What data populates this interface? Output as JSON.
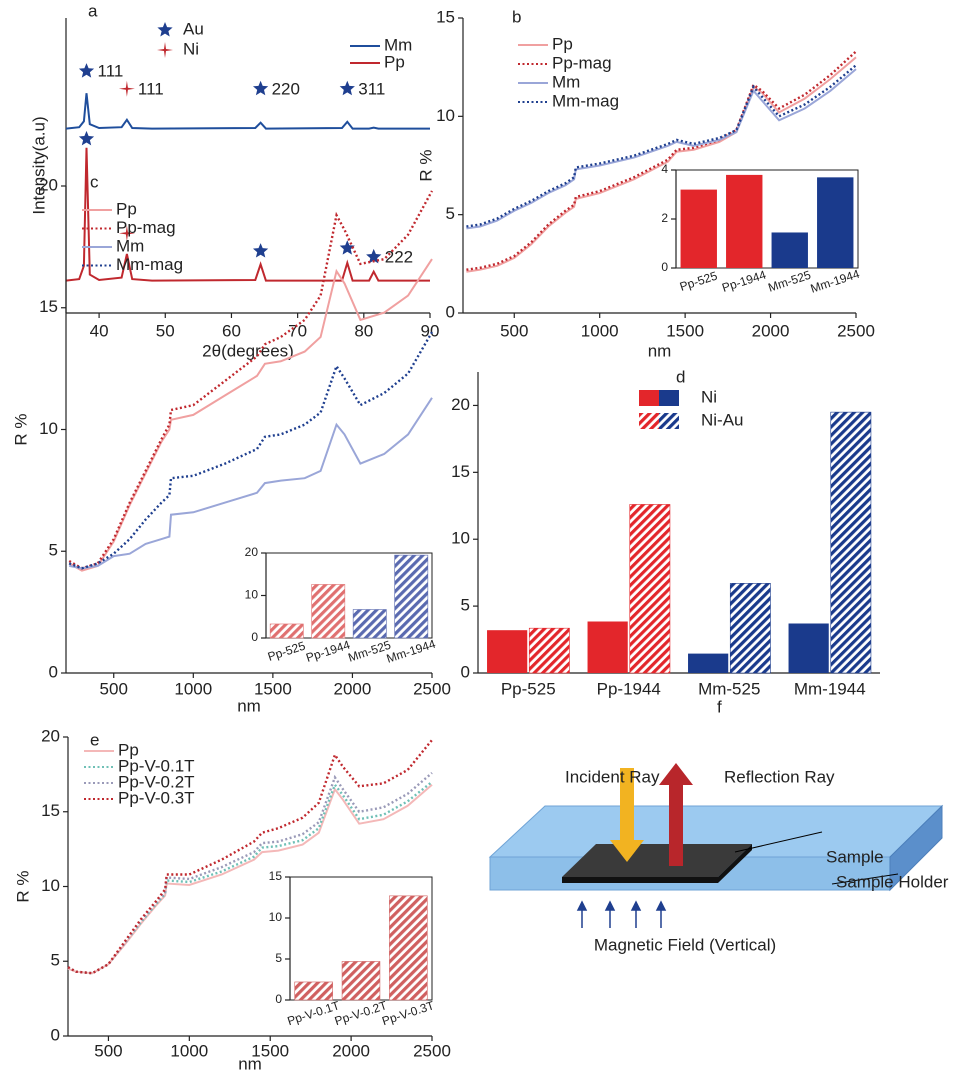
{
  "chart_data": [
    {
      "type": "line",
      "panel": "a",
      "xlabel": "2θ(degrees)",
      "ylabel": "Intensity(a.u)",
      "x": [
        35,
        37,
        37.7,
        38.1,
        38.6,
        40,
        43.4,
        44.2,
        45,
        48,
        63.6,
        64.4,
        65.2,
        76.7,
        77.5,
        78.3,
        80.8,
        81.5,
        82.2,
        90
      ],
      "xlim": [
        35,
        90
      ],
      "xticks": [
        40,
        50,
        60,
        70,
        80,
        90
      ],
      "ylim": [
        0,
        10
      ],
      "legend": "upper right",
      "series": [
        {
          "name": "Mm",
          "color": "#1f4e9c",
          "values": [
            6.25,
            6.3,
            6.5,
            7.45,
            6.4,
            6.27,
            6.3,
            6.55,
            6.27,
            6.25,
            6.27,
            6.45,
            6.25,
            6.27,
            6.48,
            6.25,
            6.25,
            6.28,
            6.25,
            6.25
          ]
        },
        {
          "name": "Pp",
          "color": "#c0282e",
          "values": [
            1.1,
            1.15,
            1.6,
            5.6,
            1.3,
            1.12,
            1.2,
            2.0,
            1.15,
            1.1,
            1.12,
            1.65,
            1.1,
            1.1,
            1.7,
            1.1,
            1.1,
            1.4,
            1.1,
            1.1
          ]
        }
      ],
      "phases": [
        {
          "name": "Au",
          "marker": "star",
          "color": "#1f3f8f"
        },
        {
          "name": "Ni",
          "marker": "cross",
          "color": "#c0282e"
        }
      ],
      "annotations": [
        {
          "text": "111",
          "phase": "Au",
          "x": 38.1,
          "y": 8.2
        },
        {
          "text": "111",
          "phase": "Ni",
          "x": 44.2,
          "y": 7.6
        },
        {
          "text": "220",
          "phase": "Au",
          "x": 64.4,
          "y": 7.6
        },
        {
          "text": "311",
          "phase": "Au",
          "x": 77.5,
          "y": 7.6
        },
        {
          "phase": "Au",
          "x": 38.1,
          "y": 5.9
        },
        {
          "phase": "Ni",
          "x": 44.2,
          "y": 2.7
        },
        {
          "phase": "Au",
          "x": 64.4,
          "y": 2.1
        },
        {
          "phase": "Au",
          "x": 77.5,
          "y": 2.2
        },
        {
          "text": "222",
          "phase": "Au",
          "x": 81.5,
          "y": 1.9
        }
      ]
    },
    {
      "type": "line",
      "panel": "b",
      "xlabel": "nm",
      "ylabel": "R %",
      "x": [
        220,
        300,
        400,
        500,
        600,
        700,
        800,
        850,
        860,
        1000,
        1200,
        1400,
        1450,
        1550,
        1700,
        1800,
        1900,
        1950,
        2050,
        2200,
        2350,
        2500
      ],
      "xlim": [
        200,
        2500
      ],
      "xticks": [
        500,
        1000,
        1500,
        2000,
        2500
      ],
      "ylim": [
        0,
        15
      ],
      "yticks": [
        0,
        5,
        10,
        15
      ],
      "legend": "upper left",
      "series": [
        {
          "name": "Pp",
          "color": "#f0a0a0",
          "dash": "solid",
          "values": [
            2.1,
            2.2,
            2.4,
            2.8,
            3.5,
            4.4,
            5.1,
            5.4,
            5.8,
            6.1,
            6.8,
            7.7,
            8.2,
            8.3,
            8.7,
            9.2,
            11.5,
            11.2,
            10.2,
            10.9,
            11.9,
            13.0
          ]
        },
        {
          "name": "Pp-mag",
          "color": "#c0282e",
          "dash": "dotted",
          "values": [
            2.2,
            2.3,
            2.5,
            2.9,
            3.6,
            4.5,
            5.2,
            5.5,
            5.9,
            6.2,
            6.9,
            7.8,
            8.3,
            8.4,
            8.8,
            9.3,
            11.6,
            11.3,
            10.4,
            11.1,
            12.1,
            13.3
          ]
        },
        {
          "name": "Mm",
          "color": "#9aa6d8",
          "dash": "solid",
          "values": [
            4.3,
            4.4,
            4.7,
            5.2,
            5.6,
            6.1,
            6.5,
            6.8,
            7.3,
            7.5,
            7.9,
            8.5,
            8.7,
            8.5,
            8.8,
            9.2,
            11.3,
            10.8,
            9.8,
            10.4,
            11.3,
            12.4
          ]
        },
        {
          "name": "Mm-mag",
          "color": "#1f3f8f",
          "dash": "dotted",
          "values": [
            4.4,
            4.5,
            4.8,
            5.3,
            5.7,
            6.2,
            6.6,
            6.9,
            7.4,
            7.6,
            8.0,
            8.6,
            8.8,
            8.6,
            8.9,
            9.3,
            11.5,
            11.0,
            10.0,
            10.6,
            11.5,
            12.6
          ]
        }
      ],
      "inset": {
        "type": "bar",
        "categories": [
          "Pp-525",
          "Pp-1944",
          "Mm-525",
          "Mm-1944"
        ],
        "values": [
          3.2,
          3.8,
          1.45,
          3.7
        ],
        "colors": [
          "#e3262b",
          "#e3262b",
          "#1a3a8c",
          "#1a3a8c"
        ],
        "hatch": false,
        "ylim": [
          0,
          4
        ],
        "yticks": [
          0,
          2,
          4
        ]
      }
    },
    {
      "type": "line",
      "panel": "c",
      "xlabel": "nm",
      "ylabel": "R %",
      "x": [
        220,
        300,
        400,
        500,
        600,
        700,
        800,
        850,
        860,
        1000,
        1200,
        1400,
        1450,
        1550,
        1700,
        1800,
        1900,
        1950,
        2050,
        2200,
        2350,
        2500
      ],
      "xlim": [
        200,
        2500
      ],
      "xticks": [
        500,
        1000,
        1500,
        2000,
        2500
      ],
      "ylim": [
        0,
        20
      ],
      "yticks": [
        0,
        5,
        10,
        15,
        20
      ],
      "legend": "upper left",
      "series": [
        {
          "name": "Pp",
          "color": "#f0a0a0",
          "dash": "solid",
          "values": [
            4.5,
            4.2,
            4.4,
            5.4,
            6.9,
            8.2,
            9.5,
            10.0,
            10.4,
            10.6,
            11.4,
            12.2,
            12.7,
            12.8,
            13.2,
            13.8,
            16.5,
            16.0,
            14.5,
            14.8,
            15.5,
            17.0
          ]
        },
        {
          "name": "Pp-mag",
          "color": "#c0282e",
          "dash": "dotted",
          "values": [
            4.6,
            4.3,
            4.5,
            5.5,
            7.0,
            8.3,
            9.6,
            10.2,
            10.8,
            11.0,
            12.0,
            13.0,
            13.5,
            13.8,
            14.5,
            15.5,
            18.8,
            18.2,
            16.8,
            17.0,
            18.0,
            19.8
          ]
        },
        {
          "name": "Mm",
          "color": "#9aa6d8",
          "dash": "solid",
          "values": [
            4.4,
            4.3,
            4.4,
            4.8,
            4.9,
            5.3,
            5.5,
            5.6,
            6.5,
            6.6,
            7.0,
            7.4,
            7.8,
            7.9,
            8.0,
            8.3,
            10.2,
            9.8,
            8.6,
            9.0,
            9.8,
            11.3
          ]
        },
        {
          "name": "Mm-mag",
          "color": "#1f3f8f",
          "dash": "dotted",
          "values": [
            4.5,
            4.3,
            4.5,
            4.9,
            5.5,
            6.3,
            7.0,
            7.3,
            8.0,
            8.1,
            8.6,
            9.2,
            9.7,
            9.8,
            10.2,
            10.7,
            12.6,
            12.1,
            11.0,
            11.5,
            12.3,
            14.0
          ]
        }
      ],
      "inset": {
        "type": "bar",
        "categories": [
          "Pp-525",
          "Pp-1944",
          "Mm-525",
          "Mm-1944"
        ],
        "values": [
          3.3,
          12.6,
          6.7,
          19.5
        ],
        "colors": [
          "#e07070",
          "#e07070",
          "#5a6ab0",
          "#5a6ab0"
        ],
        "hatch": true,
        "ylim": [
          0,
          20
        ],
        "yticks": [
          0,
          10,
          20
        ]
      }
    },
    {
      "type": "bar",
      "panel": "d",
      "categories": [
        "Pp-525",
        "Pp-1944",
        "Mm-525",
        "Mm-1944"
      ],
      "ylim": [
        0,
        22.5
      ],
      "yticks": [
        0,
        5,
        10,
        15,
        20
      ],
      "legend": "upper center",
      "series": [
        {
          "name": "Ni",
          "colors": [
            "#e3262b",
            "#e3262b",
            "#1a3a8c",
            "#1a3a8c"
          ],
          "hatch": false,
          "values": [
            3.2,
            3.85,
            1.45,
            3.7
          ]
        },
        {
          "name": "Ni-Au",
          "colors": [
            "#e3262b",
            "#e3262b",
            "#1a3a8c",
            "#1a3a8c"
          ],
          "hatch": true,
          "values": [
            3.35,
            12.6,
            6.7,
            19.5
          ]
        }
      ]
    },
    {
      "type": "line",
      "panel": "e",
      "xlabel": "nm",
      "ylabel": "R %",
      "x": [
        250,
        300,
        400,
        500,
        600,
        700,
        800,
        850,
        860,
        1000,
        1200,
        1400,
        1450,
        1550,
        1700,
        1800,
        1900,
        1950,
        2050,
        2200,
        2350,
        2500
      ],
      "xlim": [
        250,
        2500
      ],
      "xticks": [
        500,
        1000,
        1500,
        2000,
        2500
      ],
      "ylim": [
        0,
        20
      ],
      "yticks": [
        0,
        5,
        10,
        15,
        20
      ],
      "legend": "upper left",
      "series": [
        {
          "name": "Pp",
          "color": "#f4b8b8",
          "dash": "solid",
          "values": [
            4.5,
            4.3,
            4.2,
            4.8,
            6.1,
            7.5,
            8.8,
            9.4,
            10.2,
            10.1,
            10.8,
            11.8,
            12.3,
            12.4,
            12.8,
            13.6,
            16.5,
            15.8,
            14.2,
            14.5,
            15.4,
            16.8
          ]
        },
        {
          "name": "Pp-V-0.1T",
          "color": "#6fc0b6",
          "dash": "dotted",
          "values": [
            4.6,
            4.3,
            4.2,
            4.8,
            6.2,
            7.6,
            8.9,
            9.5,
            10.4,
            10.3,
            11.0,
            12.0,
            12.6,
            12.7,
            13.1,
            13.9,
            16.8,
            16.1,
            14.5,
            14.8,
            15.7,
            17.0
          ]
        },
        {
          "name": "Pp-V-0.2T",
          "color": "#9a9ab8",
          "dash": "dotted",
          "values": [
            4.6,
            4.3,
            4.2,
            4.8,
            6.2,
            7.7,
            9.0,
            9.6,
            10.6,
            10.5,
            11.3,
            12.3,
            12.9,
            13.0,
            13.5,
            14.3,
            17.3,
            16.5,
            15.0,
            15.3,
            16.2,
            17.6
          ]
        },
        {
          "name": "Pp-V-0.3T",
          "color": "#c0282e",
          "dash": "dotted",
          "values": [
            4.6,
            4.3,
            4.2,
            4.8,
            6.3,
            7.8,
            9.1,
            9.8,
            10.8,
            10.8,
            11.8,
            13.0,
            13.6,
            13.9,
            14.6,
            15.6,
            18.8,
            18.0,
            16.7,
            16.9,
            17.8,
            19.8
          ]
        }
      ],
      "inset": {
        "type": "bar",
        "categories": [
          "Pp-V-0.1T",
          "Pp-V-0.2T",
          "Pp-V-0.3T"
        ],
        "values": [
          2.2,
          4.7,
          12.7
        ],
        "colors": [
          "#d06060",
          "#d06060",
          "#d06060"
        ],
        "hatch": true,
        "ylim": [
          0,
          15
        ],
        "yticks": [
          0,
          5,
          10,
          15
        ]
      }
    }
  ],
  "diagram": {
    "panel": "f",
    "incident": "Incident Ray",
    "reflection": "Reflection Ray",
    "sample": "Sample",
    "holder": "Sample Holder",
    "field": "Magnetic Field (Vertical)"
  }
}
